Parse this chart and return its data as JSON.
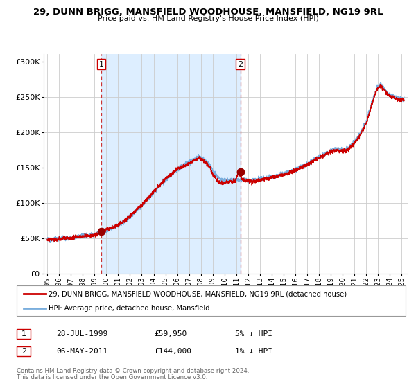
{
  "title": "29, DUNN BRIGG, MANSFIELD WOODHOUSE, MANSFIELD, NG19 9RL",
  "subtitle": "Price paid vs. HM Land Registry's House Price Index (HPI)",
  "legend_line1": "29, DUNN BRIGG, MANSFIELD WOODHOUSE, MANSFIELD, NG19 9RL (detached house)",
  "legend_line2": "HPI: Average price, detached house, Mansfield",
  "footer1": "Contains HM Land Registry data © Crown copyright and database right 2024.",
  "footer2": "This data is licensed under the Open Government Licence v3.0.",
  "transaction1_label": "1",
  "transaction1_date": "28-JUL-1999",
  "transaction1_price": "£59,950",
  "transaction1_hpi": "5% ↓ HPI",
  "transaction2_label": "2",
  "transaction2_date": "06-MAY-2011",
  "transaction2_price": "£144,000",
  "transaction2_hpi": "1% ↓ HPI",
  "sale1_x": 1999.57,
  "sale1_y": 59950,
  "sale2_x": 2011.35,
  "sale2_y": 144000,
  "vline1_x": 1999.57,
  "vline2_x": 2011.35,
  "shade_xmin": 1999.57,
  "shade_xmax": 2011.35,
  "xlim": [
    1994.7,
    2025.5
  ],
  "ylim": [
    0,
    310000
  ],
  "yticks": [
    0,
    50000,
    100000,
    150000,
    200000,
    250000,
    300000
  ],
  "ytick_labels": [
    "£0",
    "£50K",
    "£100K",
    "£150K",
    "£200K",
    "£250K",
    "£300K"
  ],
  "xtick_years": [
    1995,
    1996,
    1997,
    1998,
    1999,
    2000,
    2001,
    2002,
    2003,
    2004,
    2005,
    2006,
    2007,
    2008,
    2009,
    2010,
    2011,
    2012,
    2013,
    2014,
    2015,
    2016,
    2017,
    2018,
    2019,
    2020,
    2021,
    2022,
    2023,
    2024,
    2025
  ],
  "hpi_color": "#7aaedd",
  "price_color": "#cc0000",
  "shade_color": "#ddeeff",
  "vline_color": "#cc3333",
  "dot_color": "#990000",
  "bg_color": "#ffffff",
  "grid_color": "#cccccc"
}
